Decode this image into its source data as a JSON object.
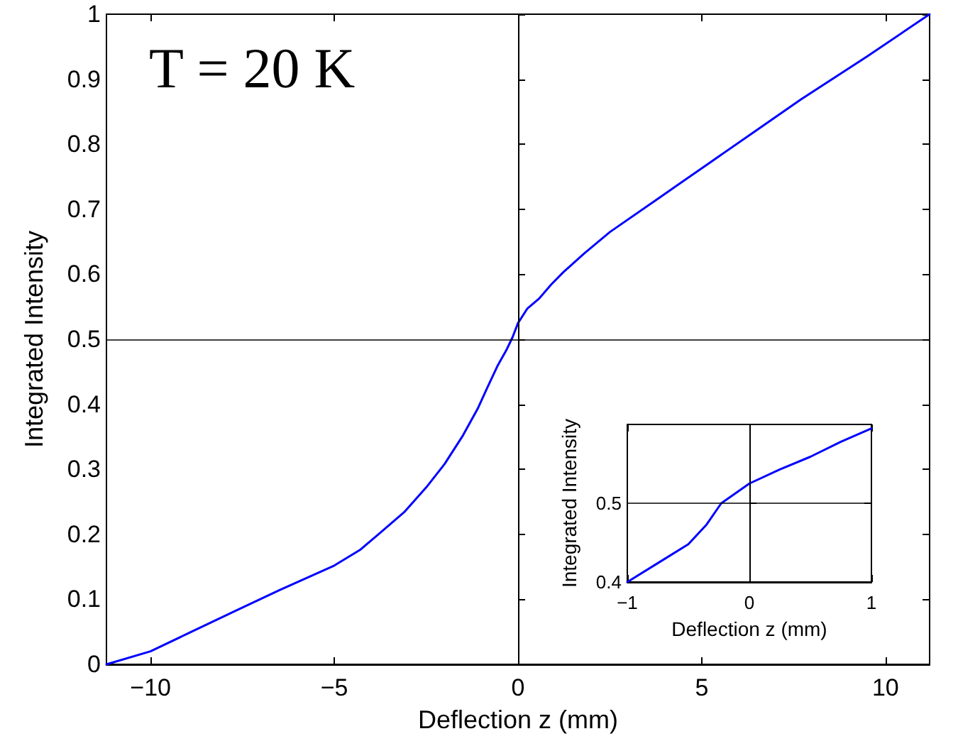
{
  "chart_data": [
    {
      "type": "line",
      "xlabel": "Deflection z (mm)",
      "ylabel": "Integrated Intensity",
      "annotations": [
        "T = 20 K"
      ],
      "x": [
        -11.2,
        -10,
        -9,
        -7.7,
        -6.5,
        -5,
        -4.3,
        -3.8,
        -3.1,
        -2.5,
        -2,
        -1.5,
        -1.1,
        -0.84,
        -0.55,
        -0.32,
        -0.15,
        0,
        0.25,
        0.58,
        0.9,
        1.23,
        1.8,
        2.5,
        3.8,
        5.1,
        6.4,
        7.7,
        9.5,
        11.2
      ],
      "series": [
        {
          "color": "#0000ff",
          "values": [
            0,
            0.02,
            0.047,
            0.082,
            0.114,
            0.152,
            0.176,
            0.2,
            0.234,
            0.272,
            0.308,
            0.352,
            0.393,
            0.425,
            0.46,
            0.483,
            0.503,
            0.525,
            0.547,
            0.563,
            0.584,
            0.603,
            0.632,
            0.665,
            0.716,
            0.767,
            0.818,
            0.869,
            0.935,
            1
          ]
        }
      ],
      "xlim": [
        -11.2,
        11.2
      ],
      "xticks": [
        -10,
        -5,
        0,
        5,
        10
      ],
      "ylim": [
        0,
        1
      ],
      "yticks": [
        0,
        0.1,
        0.2,
        0.3,
        0.4,
        0.5,
        0.6,
        0.7,
        0.8,
        0.9,
        1
      ],
      "ref_lines": [
        {
          "axis": "x",
          "value": 0,
          "color": "#000000"
        },
        {
          "axis": "y",
          "value": 0.5,
          "color": "#000000"
        }
      ],
      "marker": "none",
      "line_style": "solid"
    },
    {
      "type": "line",
      "xlabel": "Deflection z (mm)",
      "ylabel": "Integrated Intensity",
      "x": [
        -1,
        -0.75,
        -0.5,
        -0.35,
        -0.23,
        -0.12,
        0,
        0.25,
        0.5,
        0.75,
        1
      ],
      "series": [
        {
          "color": "#0000ff",
          "values": [
            0.4,
            0.424,
            0.448,
            0.473,
            0.5,
            0.512,
            0.525,
            0.543,
            0.559,
            0.578,
            0.595
          ]
        }
      ],
      "xlim": [
        -1,
        1
      ],
      "xticks": [
        -1,
        0,
        1
      ],
      "ylim": [
        0.4,
        0.6
      ],
      "yticks": [
        0.4,
        0.5
      ],
      "ref_lines": [
        {
          "axis": "x",
          "value": 0,
          "color": "#000000"
        },
        {
          "axis": "y",
          "value": 0.5,
          "color": "#000000"
        }
      ],
      "marker": "none",
      "line_style": "solid"
    }
  ]
}
